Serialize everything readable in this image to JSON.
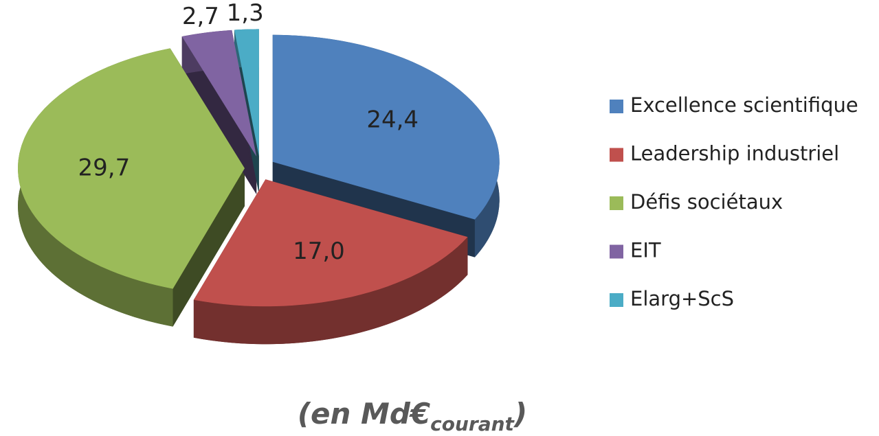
{
  "chart_data": {
    "type": "pie",
    "categories": [
      "Excellence scientifique",
      "Leadership industriel",
      "Défis sociétaux",
      "EIT",
      "Elarg+ScS"
    ],
    "values": [
      24.4,
      17.0,
      29.7,
      2.7,
      1.3
    ],
    "value_labels": [
      "24,4",
      "17,0",
      "29,7",
      "2,7",
      "1,3"
    ],
    "colors": [
      "#4f81bd",
      "#c0504d",
      "#9bbb59",
      "#8064a2",
      "#4bacc6"
    ],
    "legend": "right",
    "caption": {
      "main": "(en Md€",
      "sub": "courant",
      "end": ")"
    }
  }
}
